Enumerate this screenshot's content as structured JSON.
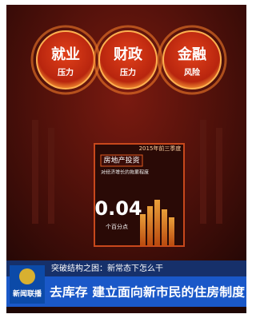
{
  "circles": [
    {
      "title": "就业",
      "sub": "压力"
    },
    {
      "title": "财政",
      "sub": "压力"
    },
    {
      "title": "金融",
      "sub": "风险"
    }
  ],
  "panel": {
    "heading": "房地产投资",
    "caption": "对经济增长的拖累程度",
    "period": "2015年前三季度",
    "figure": "0.04",
    "unit": "个百分点"
  },
  "news": {
    "logo": "新闻联播",
    "topic": "突破结构之困：新常态下怎么干",
    "headline": "去库存 建立面向新市民的住房制度"
  }
}
